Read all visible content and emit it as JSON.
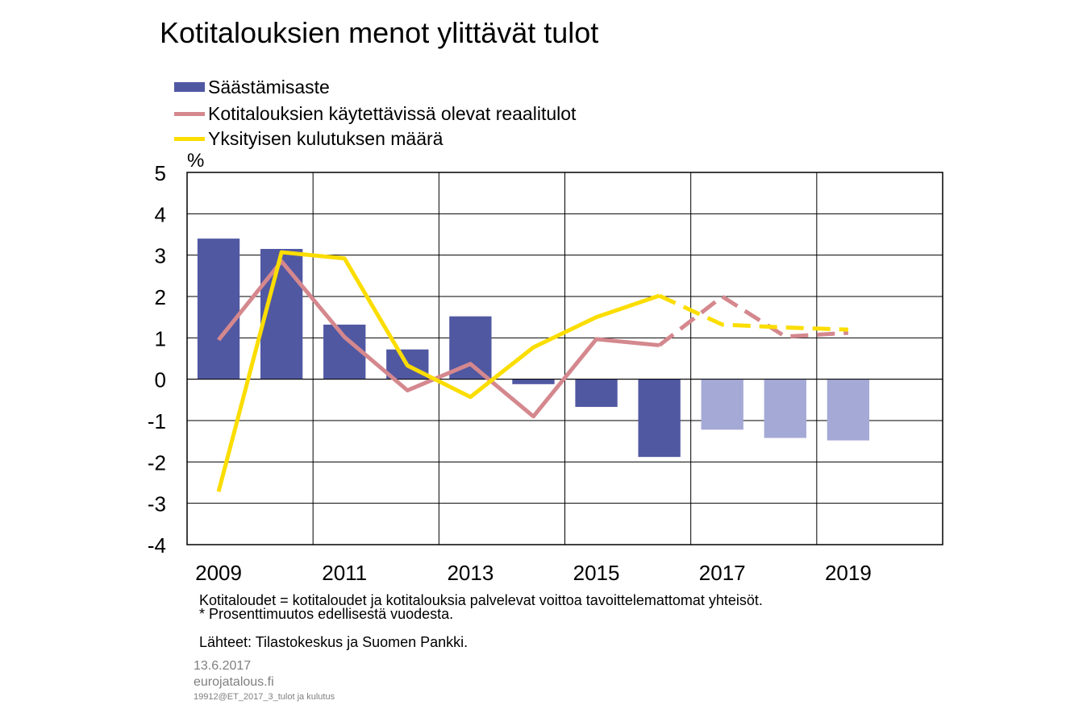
{
  "chart_data": {
    "type": "bar",
    "title": "Kotitalouksien menot ylittävät tulot",
    "ylabel": "%",
    "ylim": [
      -4,
      5
    ],
    "yticks": [
      "-4",
      "-3",
      "-2",
      "-1",
      "0",
      "1",
      "2",
      "3",
      "4",
      "5"
    ],
    "x": [
      2009,
      2010,
      2011,
      2012,
      2013,
      2014,
      2015,
      2016,
      2017,
      2018,
      2019
    ],
    "xtick_labels": [
      "2009",
      "2011",
      "2013",
      "2015",
      "2017",
      "2019"
    ],
    "xlim": [
      2008.5,
      2020.5
    ],
    "grid": true,
    "legend_position": "top-left",
    "series": [
      {
        "name": "Säästämisaste",
        "type": "bar",
        "color": "#5158a2",
        "forecast_color": "#a5a9d6",
        "forecast_from": 2017,
        "values": [
          3.4,
          3.15,
          1.32,
          0.72,
          1.52,
          -0.12,
          -0.67,
          -1.88,
          -1.22,
          -1.42,
          -1.48
        ]
      },
      {
        "name": "Kotitalouksien käytettävissä olevat reaalitulot",
        "type": "line",
        "color": "#d4888e",
        "dashed_from": 2016,
        "values": [
          0.95,
          2.85,
          1.02,
          -0.27,
          0.37,
          -0.9,
          0.97,
          0.82,
          2.0,
          1.03,
          1.12
        ]
      },
      {
        "name": "Yksityisen kulutuksen määrä",
        "type": "line",
        "color": "#fbdd00",
        "dashed_from": 2016,
        "values": [
          -2.72,
          3.07,
          2.92,
          0.33,
          -0.43,
          0.77,
          1.5,
          2.02,
          1.32,
          1.25,
          1.2
        ]
      }
    ]
  },
  "notes": {
    "definition": "Kotitaloudet = kotitaloudet ja kotitalouksia palvelevat voittoa tavoittelemattomat yhteisöt.",
    "asterisk": "* Prosenttimuutos edellisestä vuodesta.",
    "sources": "Lähteet: Tilastokeskus ja Suomen Pankki."
  },
  "footer": {
    "date": "13.6.2017",
    "site": "eurojatalous.fi",
    "code": "19912@ET_2017_3_tulot ja kulutus"
  }
}
